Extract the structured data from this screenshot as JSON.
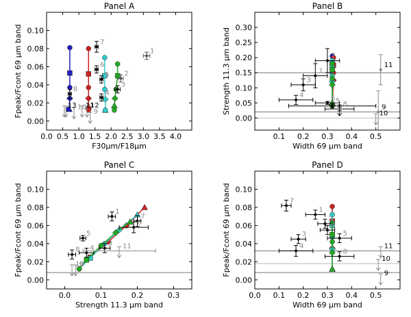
{
  "chart_data": [
    {
      "type": "scatter",
      "title": "Panel A",
      "xlabel": "F30μm/F18μm",
      "ylabel": "Fpeak/Fcont 69 μm band",
      "xlim": [
        0,
        4.5
      ],
      "ylim": [
        -0.01,
        0.12
      ],
      "xticks": [
        "0.0",
        "0.5",
        "1.0",
        "1.5",
        "2.0",
        "2.5",
        "3.0",
        "3.5",
        "4.0"
      ],
      "yticks": [
        "0.00",
        "0.02",
        "0.04",
        "0.06",
        "0.08",
        "0.10"
      ],
      "points": [
        {
          "label": "1",
          "x": 3.1,
          "y": 0.072,
          "xerr": 0.1,
          "yerr": 0.004,
          "color": "#555555",
          "lcolor": "#888888"
        },
        {
          "label": "2",
          "x": 2.3,
          "y": 0.047,
          "xerr": 0.08,
          "yerr": 0.004,
          "color": "#555555",
          "lcolor": "#888888"
        },
        {
          "label": "3",
          "x": 2.2,
          "y": 0.035,
          "xerr": 0.08,
          "yerr": 0.004,
          "color": "#000000",
          "lcolor": "#888888"
        },
        {
          "label": "4",
          "x": 1.7,
          "y": 0.026,
          "xerr": 0.05,
          "yerr": 0.004,
          "color": "#000000",
          "lcolor": "#888888"
        },
        {
          "label": "5",
          "x": 1.7,
          "y": 0.046,
          "xerr": 0.05,
          "yerr": 0.004,
          "color": "#000000",
          "lcolor": "#888888"
        },
        {
          "label": "6",
          "x": 1.55,
          "y": 0.057,
          "xerr": 0.05,
          "yerr": 0.004,
          "color": "#000000",
          "lcolor": "#888888"
        },
        {
          "label": "7",
          "x": 1.55,
          "y": 0.082,
          "xerr": 0.05,
          "yerr": 0.006,
          "color": "#000000",
          "lcolor": "#888888"
        },
        {
          "label": "8",
          "x": 0.72,
          "y": 0.03,
          "xerr": 0.05,
          "yerr": 0.005,
          "color": "#000000",
          "lcolor": "#888888"
        },
        {
          "label": "11",
          "x": 1.1,
          "y": 0.012,
          "upper": true,
          "color": "#888888",
          "lcolor": "#000000"
        },
        {
          "label": "12",
          "x": 1.25,
          "y": 0.012,
          "upper": true,
          "color": "#888888",
          "lcolor": "#000000"
        },
        {
          "label": "13",
          "x": 0.55,
          "y": 0.012,
          "upper": true,
          "color": "#888888",
          "lcolor": "#000000"
        },
        {
          "label": "9",
          "x": 1.35,
          "y": 0.005,
          "upper": true,
          "color": "#888888",
          "lcolor": "#888888"
        },
        {
          "label": "10",
          "x": 0.85,
          "y": 0.01,
          "upper": true,
          "color": "#888888",
          "lcolor": "#888888"
        },
        {
          "label": "",
          "x": 0.6,
          "y": 0.012,
          "upper": true,
          "color": "#888888",
          "lcolor": "#888888"
        }
      ],
      "models": [
        {
          "color": "#1f1fbf",
          "x": [
            0.72,
            0.72,
            0.72,
            0.72,
            0.7,
            0.67
          ],
          "y": [
            0.081,
            0.053,
            0.037,
            0.025,
            0.013,
            0.013
          ]
        },
        {
          "color": "#cc2222",
          "x": [
            1.3,
            1.3,
            1.3,
            1.3,
            1.3,
            1.3
          ],
          "y": [
            0.08,
            0.052,
            0.037,
            0.025,
            0.016,
            0.012
          ]
        },
        {
          "color": "#33cccc",
          "x": [
            1.8,
            1.8,
            1.8,
            1.82,
            1.82,
            1.82
          ],
          "y": [
            0.07,
            0.05,
            0.035,
            0.024,
            0.012,
            0.012
          ]
        },
        {
          "color": "#22aa22",
          "x": [
            2.2,
            2.2,
            2.15,
            2.12,
            2.1,
            2.1
          ],
          "y": [
            0.063,
            0.05,
            0.035,
            0.025,
            0.017,
            0.012
          ]
        }
      ]
    },
    {
      "type": "scatter",
      "title": "Panel B",
      "xlabel": "Width 69 μm band",
      "ylabel": "Strength 11.3 μm band",
      "xlim": [
        0,
        0.6
      ],
      "ylim": [
        -0.04,
        0.35
      ],
      "xticks": [
        "0.1",
        "0.2",
        "0.3",
        "0.4",
        "0.5"
      ],
      "yticks": [
        "0.00",
        "0.05",
        "0.10",
        "0.15",
        "0.20",
        "0.25",
        "0.30"
      ],
      "hlines": [
        {
          "y": 0.15,
          "color": "#777777"
        },
        {
          "y": 0.02,
          "color": "#777777"
        },
        {
          "y": 0.0,
          "color": "#bbbbbb"
        }
      ],
      "points": [
        {
          "label": "1",
          "x": 0.25,
          "y": 0.14,
          "xerr": 0.05,
          "yerr": 0.04,
          "color": "#000000",
          "lcolor": "#888888"
        },
        {
          "label": "3",
          "x": 0.2,
          "y": 0.11,
          "xerr": 0.05,
          "yerr": 0.02,
          "color": "#000000",
          "lcolor": "#888888"
        },
        {
          "label": "4",
          "x": 0.17,
          "y": 0.06,
          "xerr": 0.07,
          "yerr": 0.015,
          "color": "#000000",
          "lcolor": "#888888"
        },
        {
          "label": "5",
          "x": 0.32,
          "y": 0.04,
          "xerr": 0.18,
          "yerr": 0.006,
          "color": "#000000",
          "lcolor": "#888888"
        },
        {
          "label": "6",
          "x": 0.3,
          "y": 0.05,
          "xerr": 0.05,
          "yerr": 0.005,
          "color": "#000000",
          "lcolor": "#888888"
        },
        {
          "label": "7",
          "x": 0.3,
          "y": 0.19,
          "xerr": 0.05,
          "yerr": 0.04,
          "color": "#000000",
          "lcolor": "#888888"
        },
        {
          "label": "8",
          "x": 0.35,
          "y": 0.03,
          "xerr": 0.06,
          "yerr": 0.006,
          "color": "#000000",
          "lcolor": "#888888",
          "upper": true
        },
        {
          "label": "11",
          "x": 0.52,
          "y": 0.16,
          "xerr": 0.0,
          "yerr": 0.05,
          "color": "#888888",
          "lcolor": "#000000"
        },
        {
          "label": "9",
          "x": 0.51,
          "y": 0.02,
          "xerr": 0.0,
          "yerr": 0.07,
          "color": "#888888",
          "lcolor": "#000000"
        },
        {
          "label": "10",
          "x": 0.5,
          "y": 0.0,
          "upper": true,
          "color": "#888888",
          "lcolor": "#000000"
        }
      ],
      "models": [
        {
          "color": "#1f1fbf",
          "x": [
            0.32,
            0.32,
            0.32,
            0.32,
            0.32,
            0.32
          ],
          "y": [
            0.205,
            0.18,
            0.15,
            0.12,
            0.05,
            0.04
          ]
        },
        {
          "color": "#cc2222",
          "x": [
            0.325,
            0.325,
            0.325,
            0.325,
            0.32,
            0.32
          ],
          "y": [
            0.2,
            0.175,
            0.15,
            0.125,
            0.05,
            0.04
          ]
        },
        {
          "color": "#33cccc",
          "x": [
            0.32,
            0.32,
            0.32,
            0.32,
            0.32,
            0.32
          ],
          "y": [
            0.19,
            0.17,
            0.14,
            0.12,
            0.05,
            0.04
          ]
        },
        {
          "color": "#22aa22",
          "x": [
            0.32,
            0.32,
            0.32,
            0.32,
            0.32,
            0.32
          ],
          "y": [
            0.18,
            0.16,
            0.13,
            0.11,
            0.05,
            0.04
          ]
        }
      ]
    },
    {
      "type": "scatter",
      "title": "Panel C",
      "xlabel": "Strength 11.3 μm band",
      "ylabel": "Fpeak/Fcont 69 μm band",
      "xlim": [
        -0.05,
        0.35
      ],
      "ylim": [
        -0.01,
        0.12
      ],
      "xticks": [
        "0.0",
        "0.1",
        "0.2",
        "0.3"
      ],
      "yticks": [
        "0.00",
        "0.02",
        "0.04",
        "0.06",
        "0.08",
        "0.10"
      ],
      "hlines": [
        {
          "y": 0.008,
          "color": "#777777"
        }
      ],
      "points": [
        {
          "label": "1",
          "x": 0.13,
          "y": 0.07,
          "xerr": 0.01,
          "yerr": 0.005,
          "color": "#000000",
          "lcolor": "#888888"
        },
        {
          "label": "3",
          "x": 0.11,
          "y": 0.035,
          "xerr": 0.015,
          "yerr": 0.005,
          "color": "#000000",
          "lcolor": "#888888"
        },
        {
          "label": "4",
          "x": 0.06,
          "y": 0.03,
          "xerr": 0.02,
          "yerr": 0.005,
          "color": "#000000",
          "lcolor": "#888888"
        },
        {
          "label": "5",
          "x": 0.05,
          "y": 0.046,
          "xerr": 0.008,
          "yerr": 0.003,
          "color": "#000000",
          "lcolor": "#888888"
        },
        {
          "label": "6",
          "x": 0.19,
          "y": 0.058,
          "xerr": 0.04,
          "yerr": 0.006,
          "color": "#000000",
          "lcolor": "#888888"
        },
        {
          "label": "7",
          "x": 0.2,
          "y": 0.065,
          "xerr": 0.01,
          "yerr": 0.006,
          "color": "#000000",
          "lcolor": "#888888"
        },
        {
          "label": "8",
          "x": 0.02,
          "y": 0.028,
          "xerr": 0.01,
          "yerr": 0.005,
          "color": "#000000",
          "lcolor": "#888888"
        },
        {
          "label": "11",
          "x": 0.15,
          "y": 0.032,
          "xerr": 0.1,
          "upper": true,
          "color": "#888888",
          "lcolor": "#888888"
        },
        {
          "label": "10",
          "x": 0.02,
          "y": 0.012,
          "upper": true,
          "color": "#888888",
          "lcolor": "#888888"
        },
        {
          "label": "9",
          "x": 0.03,
          "y": 0.012,
          "upper": true,
          "color": "#888888",
          "lcolor": "#888888"
        }
      ],
      "models": [
        {
          "color": "#cc2222",
          "x": [
            0.04,
            0.07,
            0.12,
            0.17,
            0.22
          ],
          "y": [
            0.012,
            0.025,
            0.042,
            0.06,
            0.08
          ]
        },
        {
          "color": "#33cccc",
          "x": [
            0.04,
            0.07,
            0.11,
            0.15,
            0.2
          ],
          "y": [
            0.012,
            0.024,
            0.04,
            0.055,
            0.072
          ]
        },
        {
          "color": "#22aa22",
          "x": [
            0.04,
            0.06,
            0.1,
            0.14,
            0.18
          ],
          "y": [
            0.012,
            0.022,
            0.038,
            0.052,
            0.064
          ]
        }
      ]
    },
    {
      "type": "scatter",
      "title": "Panel D",
      "xlabel": "Width 69 μm band",
      "ylabel": "Fpeak/Fcont 69 μm band",
      "xlim": [
        0,
        0.6
      ],
      "ylim": [
        -0.01,
        0.12
      ],
      "xticks": [
        "0.0",
        "0.1",
        "0.2",
        "0.3",
        "0.4",
        "0.5"
      ],
      "yticks": [
        "0.00",
        "0.02",
        "0.04",
        "0.06",
        "0.08",
        "0.10"
      ],
      "hlines": [
        {
          "y": 0.032,
          "color": "#777777"
        },
        {
          "y": 0.018,
          "color": "#bbbbbb"
        },
        {
          "y": 0.008,
          "color": "#777777"
        }
      ],
      "points": [
        {
          "label": "7",
          "x": 0.13,
          "y": 0.082,
          "xerr": 0.02,
          "yerr": 0.006,
          "color": "#000000",
          "lcolor": "#888888"
        },
        {
          "label": "1",
          "x": 0.25,
          "y": 0.072,
          "xerr": 0.04,
          "yerr": 0.005,
          "color": "#000000",
          "lcolor": "#888888"
        },
        {
          "label": "2",
          "x": 0.29,
          "y": 0.062,
          "xerr": 0.03,
          "yerr": 0.005,
          "color": "#000000",
          "lcolor": "#888888"
        },
        {
          "label": "6",
          "x": 0.3,
          "y": 0.055,
          "xerr": 0.03,
          "yerr": 0.005,
          "color": "#000000",
          "lcolor": "#888888"
        },
        {
          "label": "3",
          "x": 0.18,
          "y": 0.045,
          "xerr": 0.03,
          "yerr": 0.005,
          "color": "#000000",
          "lcolor": "#888888"
        },
        {
          "label": "5",
          "x": 0.35,
          "y": 0.046,
          "xerr": 0.05,
          "yerr": 0.005,
          "color": "#000000",
          "lcolor": "#888888"
        },
        {
          "label": "4",
          "x": 0.17,
          "y": 0.032,
          "xerr": 0.07,
          "yerr": 0.006,
          "color": "#000000",
          "lcolor": "#888888"
        },
        {
          "label": "8",
          "x": 0.35,
          "y": 0.026,
          "xerr": 0.06,
          "yerr": 0.005,
          "color": "#000000",
          "lcolor": "#888888"
        },
        {
          "label": "11",
          "x": 0.52,
          "y": 0.032,
          "upper": true,
          "color": "#888888",
          "lcolor": "#000000"
        },
        {
          "label": "10",
          "x": 0.51,
          "y": 0.018,
          "upper": true,
          "color": "#888888",
          "lcolor": "#000000"
        },
        {
          "label": "9",
          "x": 0.52,
          "y": 0.002,
          "upper": true,
          "color": "#888888",
          "lcolor": "#000000"
        }
      ],
      "models": [
        {
          "color": "#cc2222",
          "x": [
            0.32,
            0.32,
            0.32,
            0.32,
            0.32
          ],
          "y": [
            0.081,
            0.065,
            0.05,
            0.035,
            0.012
          ]
        },
        {
          "color": "#33cccc",
          "x": [
            0.32,
            0.32,
            0.32,
            0.32,
            0.32
          ],
          "y": [
            0.072,
            0.06,
            0.047,
            0.034,
            0.012
          ]
        },
        {
          "color": "#22aa22",
          "x": [
            0.32,
            0.32,
            0.32,
            0.32,
            0.32
          ],
          "y": [
            0.063,
            0.05,
            0.042,
            0.03,
            0.012
          ]
        }
      ]
    }
  ]
}
